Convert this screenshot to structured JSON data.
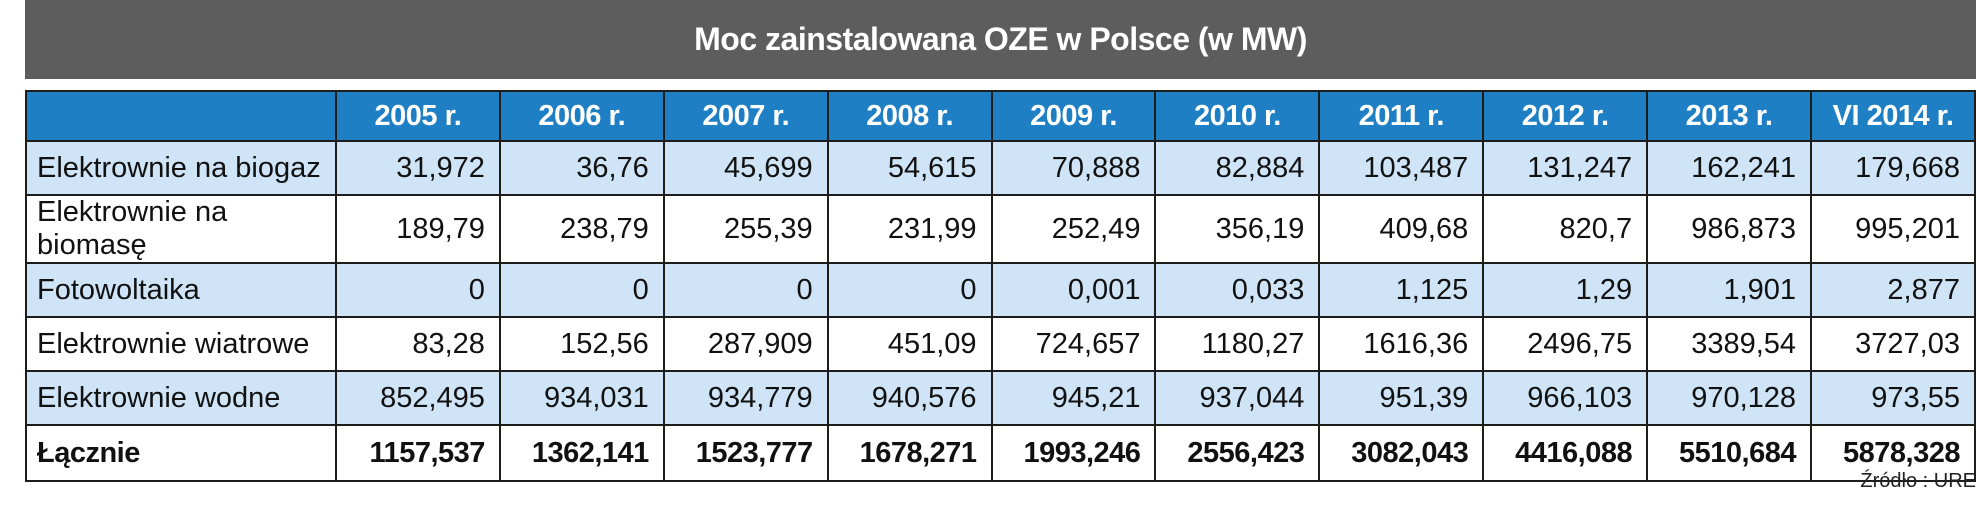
{
  "title": "Moc zainstalowana OZE w Polsce  (w MW)",
  "colors": {
    "title_bg": "#5d5d5d",
    "header_bg": "#1f7fc4",
    "alt_row_bg": "#cfe4f6"
  },
  "chart_data": {
    "type": "table",
    "title": "Moc zainstalowana OZE w Polsce  (w MW)",
    "columns": [
      "2005 r.",
      "2006 r.",
      "2007 r.",
      "2008 r.",
      "2009 r.",
      "2010 r.",
      "2011 r.",
      "2012 r.",
      "2013 r.",
      "VI 2014 r."
    ],
    "rows": [
      {
        "label": "Elektrownie na biogaz",
        "values": [
          "31,972",
          "36,76",
          "45,699",
          "54,615",
          "70,888",
          "82,884",
          "103,487",
          "131,247",
          "162,241",
          "179,668"
        ]
      },
      {
        "label": "Elektrownie na biomasę",
        "values": [
          "189,79",
          "238,79",
          "255,39",
          "231,99",
          "252,49",
          "356,19",
          "409,68",
          "820,7",
          "986,873",
          "995,201"
        ]
      },
      {
        "label": "Fotowoltaika",
        "values": [
          "0",
          "0",
          "0",
          "0",
          "0,001",
          "0,033",
          "1,125",
          "1,29",
          "1,901",
          "2,877"
        ]
      },
      {
        "label": "Elektrownie wiatrowe",
        "values": [
          "83,28",
          "152,56",
          "287,909",
          "451,09",
          "724,657",
          "1180,27",
          "1616,36",
          "2496,75",
          "3389,54",
          "3727,03"
        ]
      },
      {
        "label": "Elektrownie wodne",
        "values": [
          "852,495",
          "934,031",
          "934,779",
          "940,576",
          "945,21",
          "937,044",
          "951,39",
          "966,103",
          "970,128",
          "973,55"
        ]
      },
      {
        "label": "Łącznie",
        "values": [
          "1157,537",
          "1362,141",
          "1523,777",
          "1678,271",
          "1993,246",
          "2556,423",
          "3082,043",
          "4416,088",
          "5510,684",
          "5878,328"
        ]
      }
    ]
  },
  "source": "Źródło : URE"
}
